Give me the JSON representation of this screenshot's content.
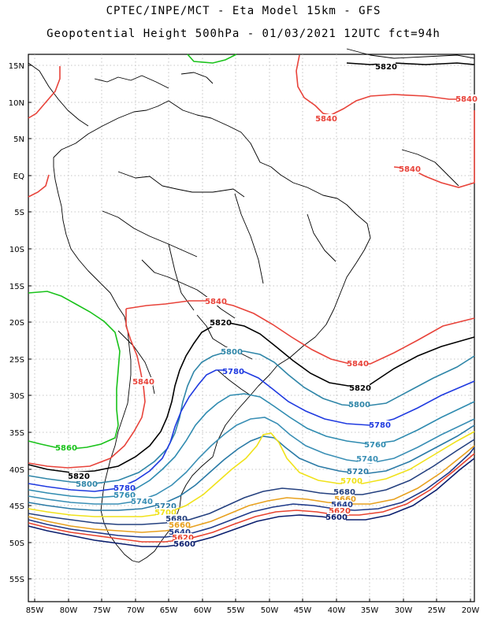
{
  "title_line1": "CPTEC/INPE/MCT -  Eta Model 15km - GFS",
  "title_line2": "Geopotential Height 500hPa - 01/03/2021 12UTC fct=94h",
  "lat_labels": [
    "15N",
    "10N",
    "5N",
    "EQ",
    "5S",
    "10S",
    "15S",
    "20S",
    "25S",
    "30S",
    "35S",
    "40S",
    "45S",
    "50S",
    "55S"
  ],
  "lon_labels": [
    "85W",
    "80W",
    "75W",
    "70W",
    "65W",
    "60W",
    "55W",
    "50W",
    "45W",
    "40W",
    "35W",
    "30W",
    "25W",
    "20W"
  ],
  "contour_colors": {
    "5600": "#0a1e6e",
    "5620": "#e8432f",
    "5640": "#1f3a8a",
    "5660": "#e8a11f",
    "5680": "#24407f",
    "5700": "#f0e21a",
    "5720": "#2a7aa6",
    "5740": "#3a8fb5",
    "5760": "#2f8bb0",
    "5780": "#1f3ae0",
    "5800": "#2f86a8",
    "5820": "#000000",
    "5840": "#e8433a",
    "5860": "#19c21a"
  },
  "contour_labels": [
    {
      "text": "5820",
      "color": "#000000"
    },
    {
      "text": "5840",
      "color": "#e8433a"
    },
    {
      "text": "5840",
      "color": "#e8433a"
    },
    {
      "text": "5840",
      "color": "#e8433a"
    },
    {
      "text": "5840",
      "color": "#e8433a"
    },
    {
      "text": "5820",
      "color": "#000000"
    },
    {
      "text": "5840",
      "color": "#e8433a"
    },
    {
      "text": "5800",
      "color": "#2f86a8"
    },
    {
      "text": "5780",
      "color": "#1f3ae0"
    },
    {
      "text": "5840",
      "color": "#e8433a"
    },
    {
      "text": "5820",
      "color": "#000000"
    },
    {
      "text": "5800",
      "color": "#2f86a8"
    },
    {
      "text": "5780",
      "color": "#1f3ae0"
    },
    {
      "text": "5760",
      "color": "#2f8bb0"
    },
    {
      "text": "5740",
      "color": "#3a8fb5"
    },
    {
      "text": "5720",
      "color": "#2a7aa6"
    },
    {
      "text": "5700",
      "color": "#f0e21a"
    },
    {
      "text": "5680",
      "color": "#24407f"
    },
    {
      "text": "5660",
      "color": "#e8a11f"
    },
    {
      "text": "5640",
      "color": "#1f3a8a"
    },
    {
      "text": "5620",
      "color": "#e8432f"
    },
    {
      "text": "5600",
      "color": "#0a1e6e"
    },
    {
      "text": "5860",
      "color": "#19c21a"
    },
    {
      "text": "5820",
      "color": "#000000"
    },
    {
      "text": "5800",
      "color": "#2f86a8"
    },
    {
      "text": "5780",
      "color": "#1f3ae0"
    },
    {
      "text": "5760",
      "color": "#2f8bb0"
    },
    {
      "text": "5740",
      "color": "#3a8fb5"
    },
    {
      "text": "5720",
      "color": "#2a7aa6"
    },
    {
      "text": "5700",
      "color": "#f0e21a"
    },
    {
      "text": "5680",
      "color": "#24407f"
    },
    {
      "text": "5660",
      "color": "#e8a11f"
    },
    {
      "text": "5640",
      "color": "#1f3a8a"
    },
    {
      "text": "5620",
      "color": "#e8432f"
    },
    {
      "text": "5600",
      "color": "#0a1e6e"
    }
  ]
}
